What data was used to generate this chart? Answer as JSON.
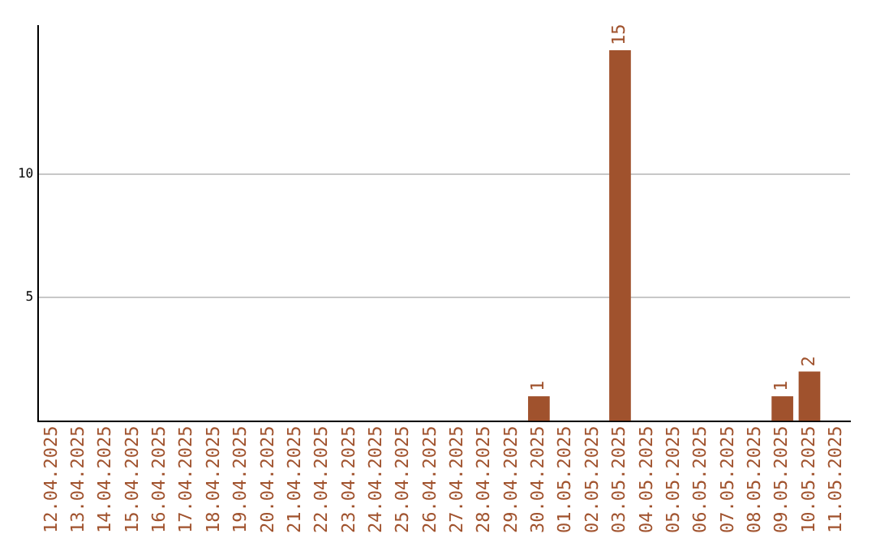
{
  "chart_data": {
    "type": "bar",
    "categories": [
      "12.04.2025",
      "13.04.2025",
      "14.04.2025",
      "15.04.2025",
      "16.04.2025",
      "17.04.2025",
      "18.04.2025",
      "19.04.2025",
      "20.04.2025",
      "21.04.2025",
      "22.04.2025",
      "23.04.2025",
      "24.04.2025",
      "25.04.2025",
      "26.04.2025",
      "27.04.2025",
      "28.04.2025",
      "29.04.2025",
      "30.04.2025",
      "01.05.2025",
      "02.05.2025",
      "03.05.2025",
      "04.05.2025",
      "05.05.2025",
      "06.05.2025",
      "07.05.2025",
      "08.05.2025",
      "09.05.2025",
      "10.05.2025",
      "11.05.2025"
    ],
    "values": [
      0,
      0,
      0,
      0,
      0,
      0,
      0,
      0,
      0,
      0,
      0,
      0,
      0,
      0,
      0,
      0,
      0,
      0,
      1,
      0,
      0,
      15,
      0,
      0,
      0,
      0,
      0,
      1,
      2,
      0
    ],
    "value_labels": [
      null,
      null,
      null,
      null,
      null,
      null,
      null,
      null,
      null,
      null,
      null,
      null,
      null,
      null,
      null,
      null,
      null,
      null,
      "1",
      null,
      null,
      "15",
      null,
      null,
      null,
      null,
      null,
      "1",
      "2",
      null
    ],
    "color": "#a0522d",
    "ylim": [
      0,
      16
    ],
    "yticks": [
      5,
      10
    ],
    "grid": "y"
  }
}
